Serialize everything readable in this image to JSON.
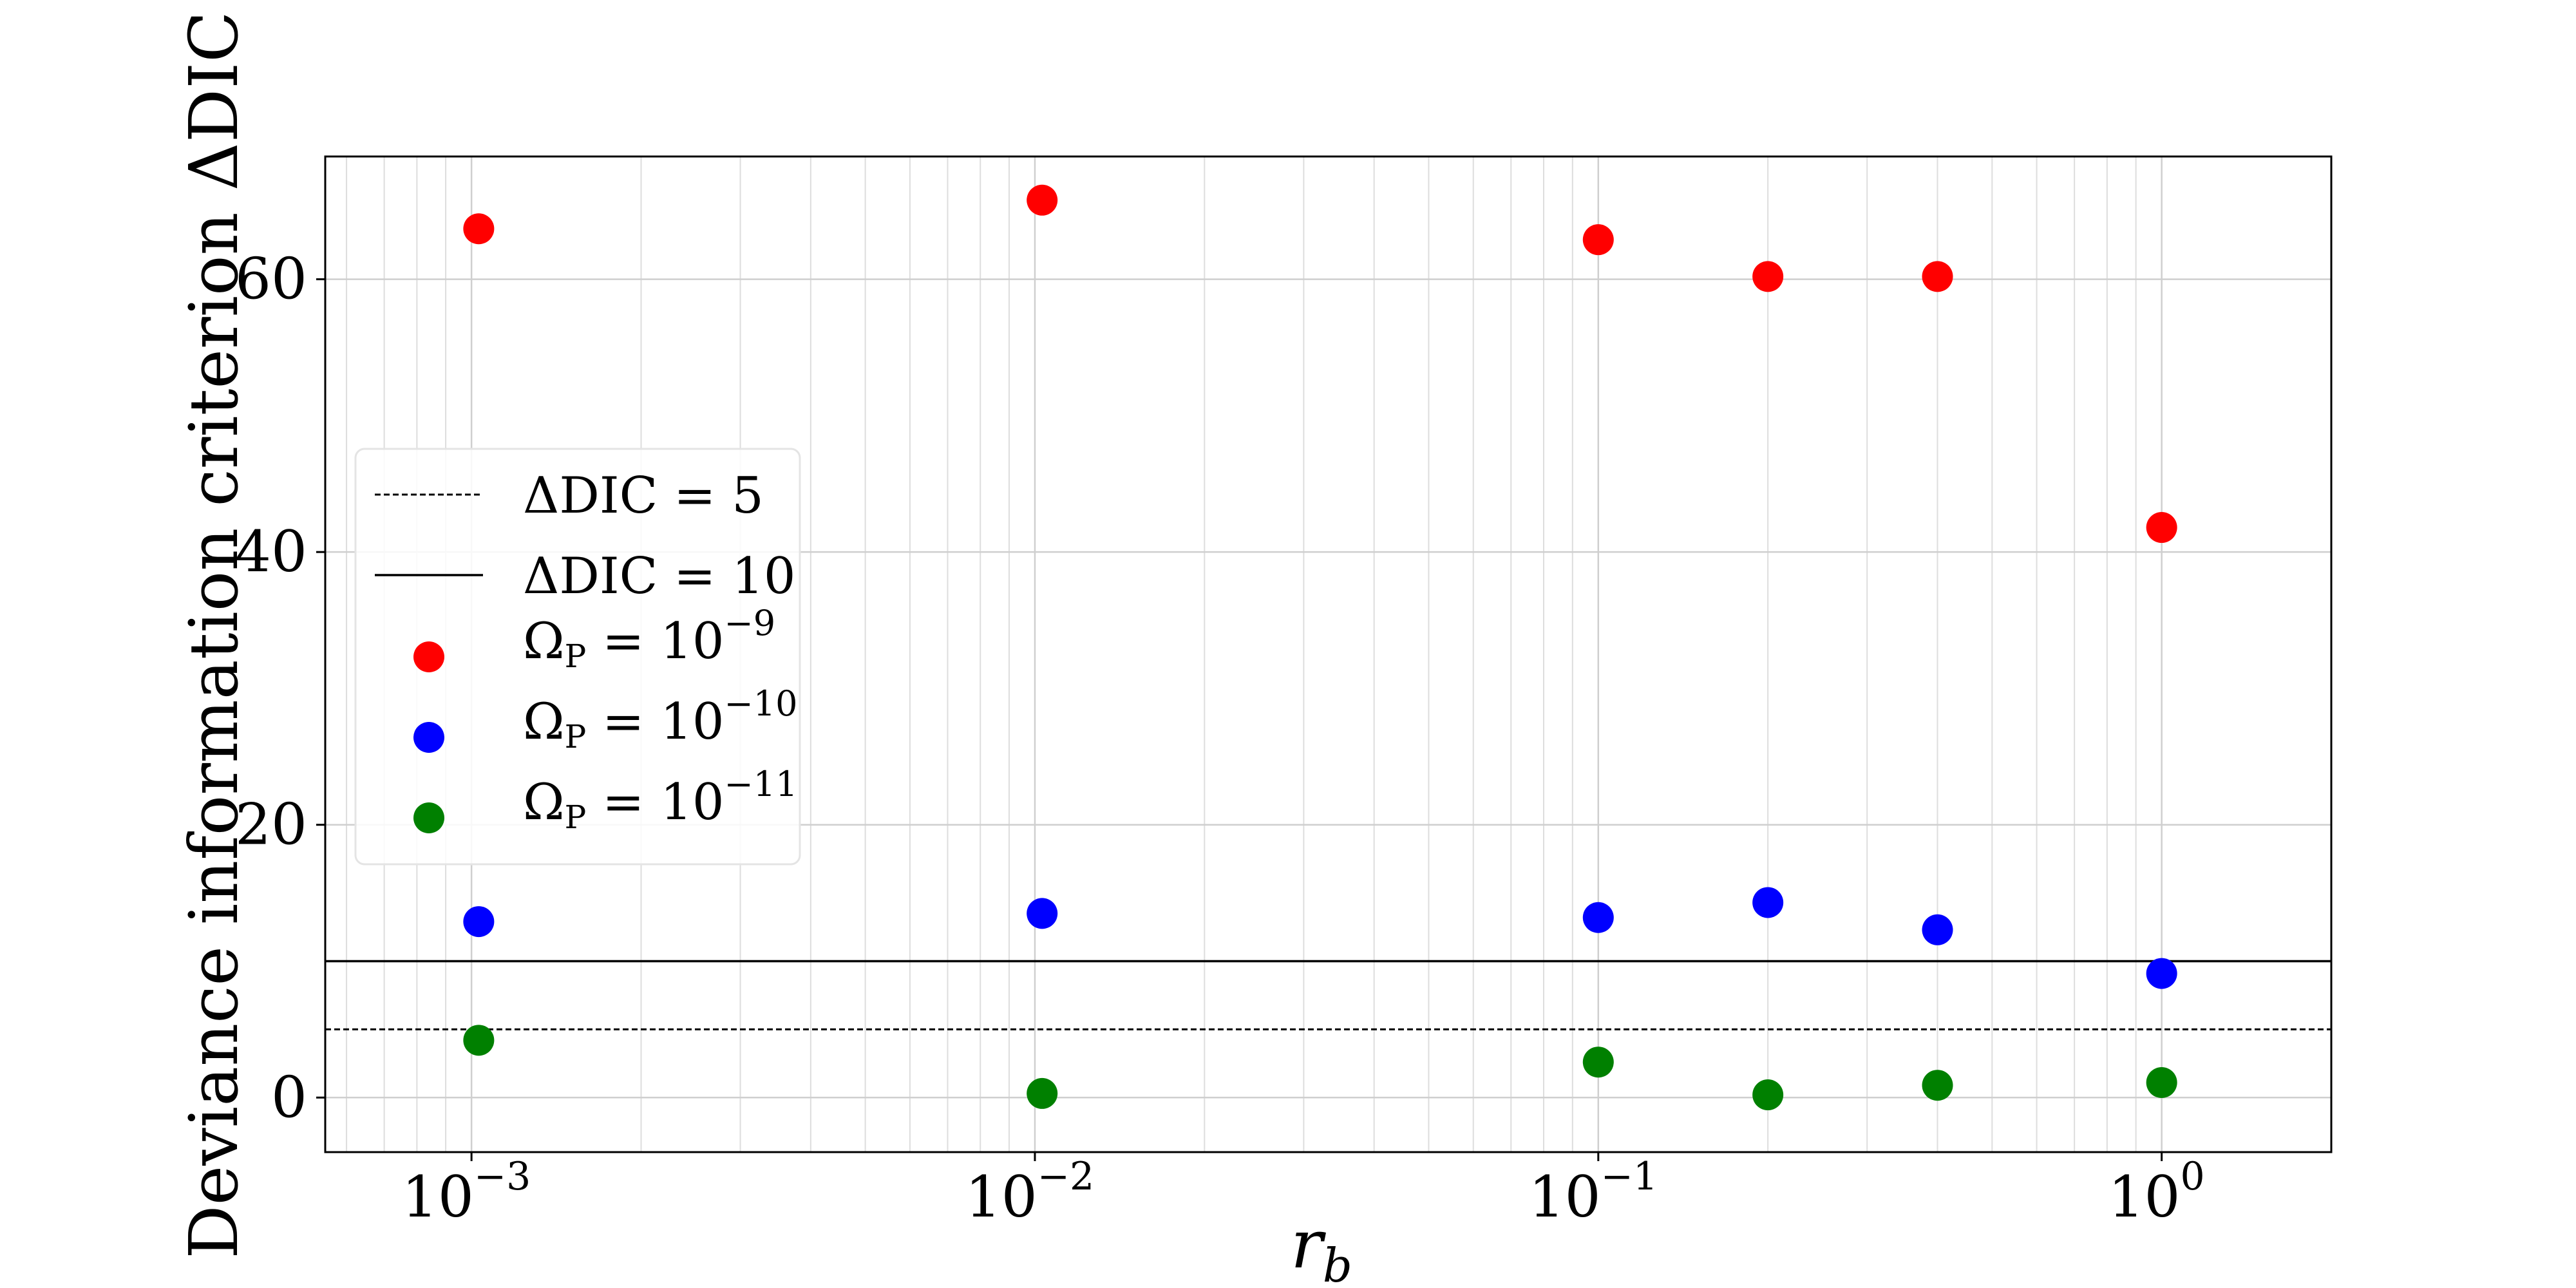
{
  "chart_data": {
    "type": "scatter",
    "xscale": "log",
    "xlim": [
      0.00055,
      2.0
    ],
    "ylim": [
      -4,
      69
    ],
    "grid": true,
    "xlabel": "r_b",
    "xlabel_base": "r",
    "xlabel_sub": "b",
    "ylabel": "Deviance information criterion ΔDIC",
    "xticks": [
      {
        "base": "10",
        "exp": "−3",
        "value": 0.001
      },
      {
        "base": "10",
        "exp": "−2",
        "value": 0.01
      },
      {
        "base": "10",
        "exp": "−1",
        "value": 0.1
      },
      {
        "base": "10",
        "exp": "0",
        "value": 1
      }
    ],
    "yticks": [
      "0",
      "20",
      "40",
      "60"
    ],
    "hlines": [
      {
        "label": "ΔDIC = 5",
        "y": 5,
        "style": "dashed"
      },
      {
        "label": "ΔDIC = 10",
        "y": 10,
        "style": "solid"
      }
    ],
    "series": [
      {
        "name": "ΩP = 10^−9",
        "prefix": "Ω",
        "sub": "P",
        "mid": " = 10",
        "exp": "−9",
        "color": "#ff0000",
        "x": [
          0.00103,
          0.0103,
          0.1,
          0.2,
          0.4,
          1.0
        ],
        "y": [
          63.7,
          65.8,
          62.9,
          60.2,
          60.2,
          41.8
        ]
      },
      {
        "name": "ΩP = 10^−10",
        "prefix": "Ω",
        "sub": "P",
        "mid": " = 10",
        "exp": "−10",
        "color": "#0000ff",
        "x": [
          0.00103,
          0.0103,
          0.1,
          0.2,
          0.4,
          1.0
        ],
        "y": [
          12.9,
          13.5,
          13.2,
          14.3,
          12.3,
          9.1
        ]
      },
      {
        "name": "ΩP = 10^−11",
        "prefix": "Ω",
        "sub": "P",
        "mid": " = 10",
        "exp": "−11",
        "color": "#008000",
        "x": [
          0.00103,
          0.0103,
          0.1,
          0.2,
          0.4,
          1.0
        ],
        "y": [
          4.2,
          0.3,
          2.6,
          0.2,
          0.9,
          1.1
        ]
      }
    ],
    "legend": {
      "placement": "center-left"
    }
  }
}
